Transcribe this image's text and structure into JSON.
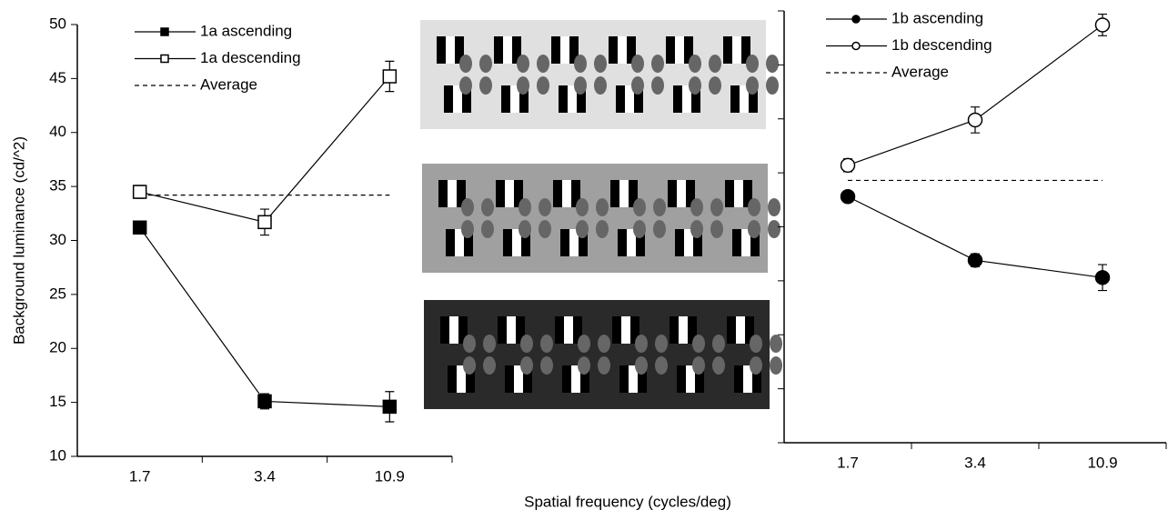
{
  "chart_data": [
    {
      "type": "line",
      "ylabel": "Background luminance (cd/^2)",
      "xlabel": "Spatial frequency (cycles/deg)",
      "categories": [
        "1.7",
        "3.4",
        "10.9"
      ],
      "ylim": [
        10,
        50
      ],
      "yticks": [
        10,
        15,
        20,
        25,
        30,
        35,
        40,
        45,
        50
      ],
      "series": [
        {
          "name": "1a ascending",
          "color": "#000000",
          "marker": "square",
          "filled": true,
          "values": [
            31.2,
            15.1,
            14.6
          ],
          "errors": [
            0.3,
            0.7,
            1.4
          ]
        },
        {
          "name": "1a descending",
          "color": "#000000",
          "marker": "square",
          "filled": false,
          "values": [
            34.5,
            31.7,
            45.2
          ],
          "errors": [
            0.6,
            1.2,
            1.4
          ]
        }
      ],
      "reference": {
        "name": "Average",
        "value": 34.2,
        "style": "dashed"
      }
    },
    {
      "type": "line",
      "categories": [
        "1.7",
        "3.4",
        "10.9"
      ],
      "ylim": [
        10,
        50
      ],
      "yticks": [
        10,
        15,
        20,
        25,
        30,
        35,
        40,
        45,
        50
      ],
      "series": [
        {
          "name": "1b ascending",
          "color": "#000000",
          "marker": "circle",
          "filled": true,
          "values": [
            32.8,
            26.9,
            25.3
          ],
          "errors": [
            0.5,
            0.6,
            1.2
          ]
        },
        {
          "name": "1b descending",
          "color": "#000000",
          "marker": "circle",
          "filled": false,
          "values": [
            35.7,
            39.9,
            48.7
          ],
          "errors": [
            0.6,
            1.2,
            1.0
          ]
        }
      ],
      "reference": {
        "name": "Average",
        "value": 34.3,
        "style": "dashed"
      }
    }
  ]
}
